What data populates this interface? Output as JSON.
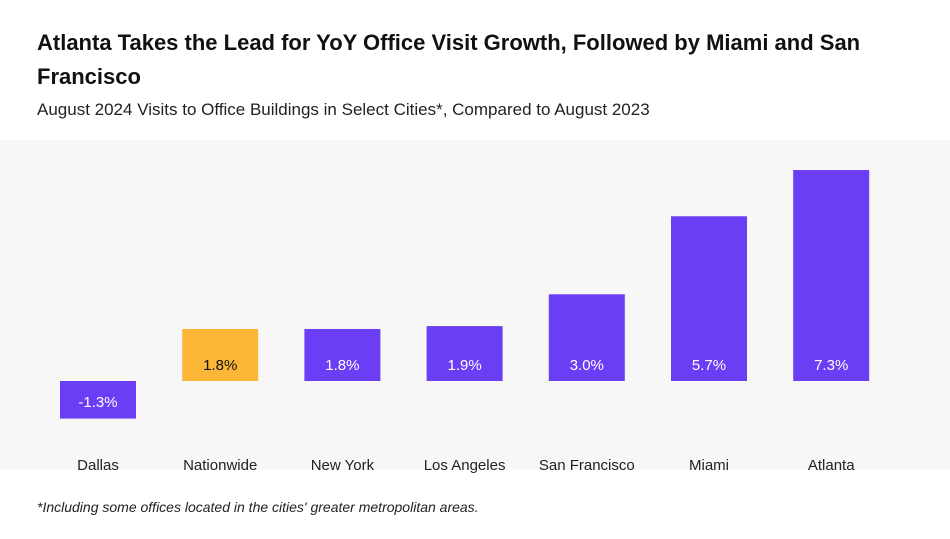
{
  "chart_data": {
    "type": "bar",
    "title": "Atlanta Takes the Lead for YoY Office Visit Growth, Followed by Miami and San Francisco",
    "subtitle": "August 2024 Visits to Office Buildings in Select Cities*, Compared to August 2023",
    "categories": [
      "Dallas",
      "Nationwide",
      "New York",
      "Los Angeles",
      "San Francisco",
      "Miami",
      "Atlanta"
    ],
    "values": [
      -1.3,
      1.8,
      1.8,
      1.9,
      3.0,
      5.7,
      7.3
    ],
    "data_labels": [
      "-1.3%",
      "1.8%",
      "1.8%",
      "1.9%",
      "3.0%",
      "5.7%",
      "7.3%"
    ],
    "highlight_category": "Nationwide",
    "colors": {
      "bar": "#6b3df5",
      "highlight": "#fbb637",
      "label_on_bar": "#ffffff",
      "label_on_highlight": "#111111",
      "category_label": "#222222"
    },
    "ylim": [
      -1.3,
      7.3
    ],
    "grid": false,
    "legend": "none",
    "xlabel": "",
    "ylabel": ""
  },
  "footnote": "*Including some offices located in the cities' greater metropolitan areas."
}
